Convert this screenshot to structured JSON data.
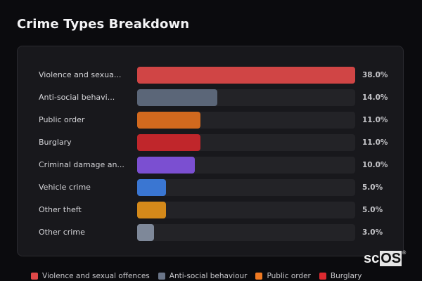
{
  "header": {
    "title": "Crime Types Breakdown"
  },
  "chart_data": {
    "type": "bar",
    "orientation": "horizontal",
    "title": "Crime Types Breakdown",
    "xlabel": "",
    "ylabel": "",
    "unit": "%",
    "grid": false,
    "legend_position": "bottom",
    "categories": [
      "Violence and sexual offences",
      "Anti-social behaviour",
      "Public order",
      "Burglary",
      "Criminal damage and arson",
      "Vehicle crime",
      "Other theft",
      "Other crime"
    ],
    "display_labels": [
      "Violence and sexua...",
      "Anti-social behavi...",
      "Public order",
      "Burglary",
      "Criminal damage an...",
      "Vehicle crime",
      "Other theft",
      "Other crime"
    ],
    "values": [
      38.0,
      14.0,
      11.0,
      11.0,
      10.0,
      5.0,
      5.0,
      3.0
    ],
    "value_labels": [
      "38.0%",
      "14.0%",
      "11.0%",
      "11.0%",
      "10.0%",
      "5.0%",
      "5.0%",
      "3.0%"
    ],
    "colors": [
      "#d04545",
      "#5b6678",
      "#d2691e",
      "#c0262b",
      "#7b4fd1",
      "#3a76d2",
      "#d4891a",
      "#7e8899"
    ],
    "xlim": [
      0,
      38
    ]
  },
  "rows": [
    {
      "label": "Violence and sexua...",
      "pct": "38.0%",
      "value": 38.0,
      "color": "#d04545"
    },
    {
      "label": "Anti-social behavi...",
      "pct": "14.0%",
      "value": 14.0,
      "color": "#5b6678"
    },
    {
      "label": "Public order",
      "pct": "11.0%",
      "value": 11.0,
      "color": "#d2691e"
    },
    {
      "label": "Burglary",
      "pct": "11.0%",
      "value": 11.0,
      "color": "#c0262b"
    },
    {
      "label": "Criminal damage an...",
      "pct": "10.0%",
      "value": 10.0,
      "color": "#7b4fd1"
    },
    {
      "label": "Vehicle crime",
      "pct": "5.0%",
      "value": 5.0,
      "color": "#3a76d2"
    },
    {
      "label": "Other theft",
      "pct": "5.0%",
      "value": 5.0,
      "color": "#d4891a"
    },
    {
      "label": "Other crime",
      "pct": "3.0%",
      "value": 3.0,
      "color": "#7e8899"
    }
  ],
  "legend": [
    {
      "label": "Violence and sexual offences",
      "color": "#e04848"
    },
    {
      "label": "Anti-social behaviour",
      "color": "#6a7588"
    },
    {
      "label": "Public order",
      "color": "#f07a22"
    },
    {
      "label": "Burglary",
      "color": "#dd2a30"
    }
  ],
  "logo": {
    "prefix": "sc",
    "boxed": "OS",
    "mark": "®"
  }
}
